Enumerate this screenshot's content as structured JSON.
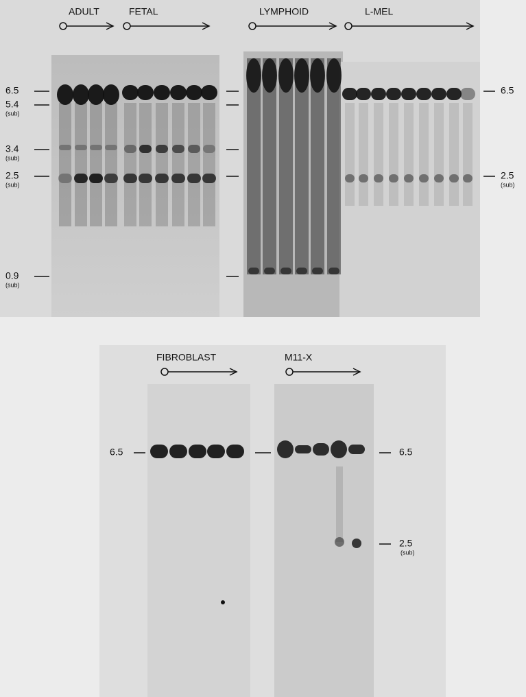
{
  "top_panel": {
    "groups": [
      {
        "label": "ADULT"
      },
      {
        "label": "FETAL"
      },
      {
        "label": "LYMPHOID"
      },
      {
        "label": "L-MEL"
      }
    ],
    "left_markers": [
      {
        "size": "6.5"
      },
      {
        "size": "5.4",
        "sub": "(sub)"
      },
      {
        "size": "3.4",
        "sub": "(sub)"
      },
      {
        "size": "2.5",
        "sub": "(sub)"
      },
      {
        "size": "0.9",
        "sub": "(sub)"
      }
    ],
    "right_markers": [
      {
        "size": "6.5"
      },
      {
        "size": "2.5",
        "sub": "(sub)"
      }
    ]
  },
  "bottom_panel": {
    "groups": [
      {
        "label": "FIBROBLAST"
      },
      {
        "label": "M11-X"
      }
    ],
    "left_markers": [
      {
        "size": "6.5"
      }
    ],
    "right_markers": [
      {
        "size": "6.5"
      },
      {
        "size": "2.5",
        "sub": "(sub)"
      }
    ]
  }
}
